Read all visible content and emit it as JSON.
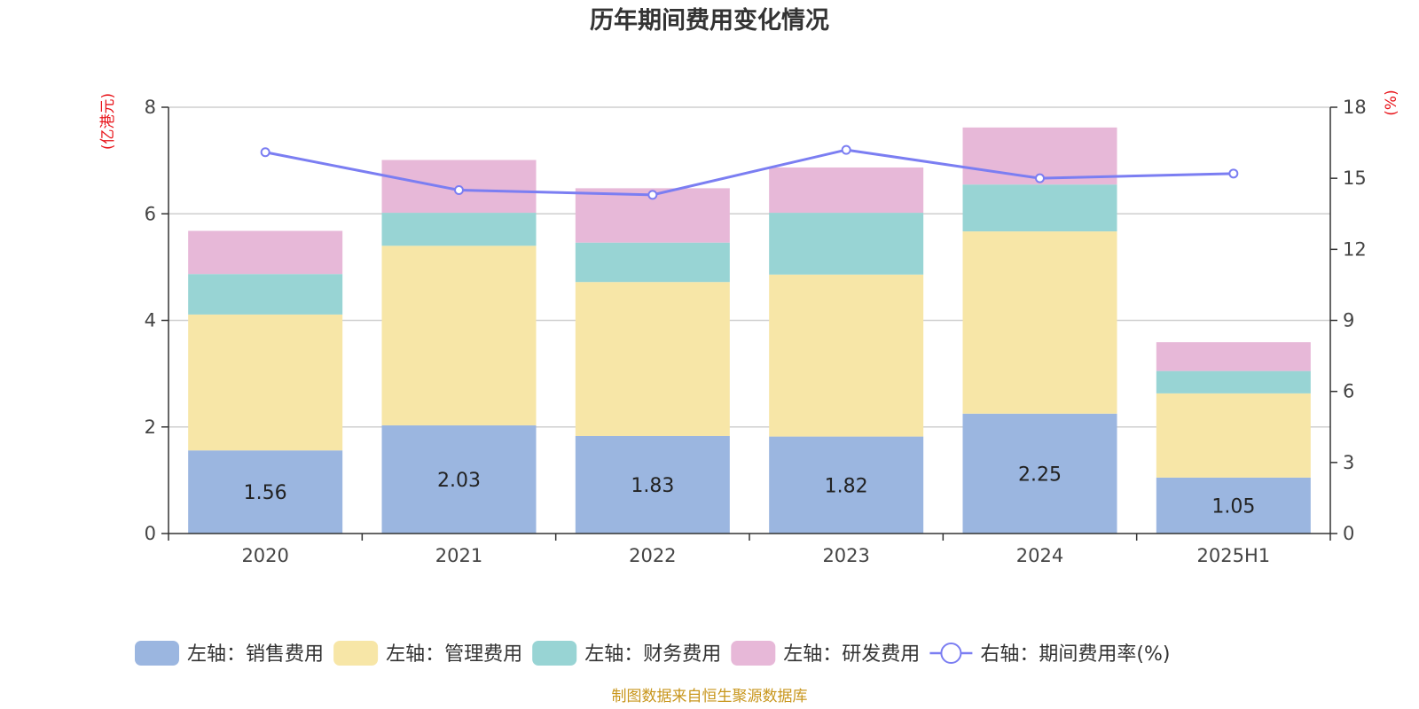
{
  "colors": {
    "sales": "#9bb6e0",
    "admin": "#f7e6a7",
    "finance": "#98d4d4",
    "rnd": "#e7b8d8",
    "rate_line": "#7b7ef2",
    "unit_red": "#e8141a",
    "source_gold": "#c8961c"
  },
  "chart_data": {
    "type": "bar",
    "stacked": true,
    "title": "历年期间费用变化情况",
    "left_axis_unit": "(亿港元)",
    "right_axis_unit": "(%)",
    "categories": [
      "2020",
      "2021",
      "2022",
      "2023",
      "2024",
      "2025H1"
    ],
    "ylim_left": [
      0,
      8
    ],
    "yticks_left": [
      "0",
      "2",
      "4",
      "6",
      "8"
    ],
    "ylim_right": [
      0,
      18
    ],
    "yticks_right": [
      "0",
      "3",
      "6",
      "9",
      "12",
      "15",
      "18"
    ],
    "grid": true,
    "series": [
      {
        "name": "左轴：销售费用",
        "axis": "left",
        "values": [
          1.56,
          2.03,
          1.83,
          1.82,
          2.25,
          1.05
        ],
        "labels": [
          "1.56",
          "2.03",
          "1.83",
          "1.82",
          "2.25",
          "1.05"
        ]
      },
      {
        "name": "左轴：管理费用",
        "axis": "left",
        "values": [
          2.55,
          3.37,
          2.89,
          3.04,
          3.42,
          1.58
        ]
      },
      {
        "name": "左轴：财务费用",
        "axis": "left",
        "values": [
          0.76,
          0.62,
          0.74,
          1.16,
          0.88,
          0.42
        ]
      },
      {
        "name": "左轴：研发费用",
        "axis": "left",
        "values": [
          0.81,
          0.99,
          1.02,
          0.85,
          1.07,
          0.54
        ]
      }
    ],
    "line_series": {
      "name": "右轴：期间费用率(%)",
      "axis": "right",
      "values": [
        16.1,
        14.5,
        14.3,
        16.2,
        15.0,
        15.2
      ]
    },
    "legend_position": "bottom"
  },
  "source_text": "制图数据来自恒生聚源数据库"
}
